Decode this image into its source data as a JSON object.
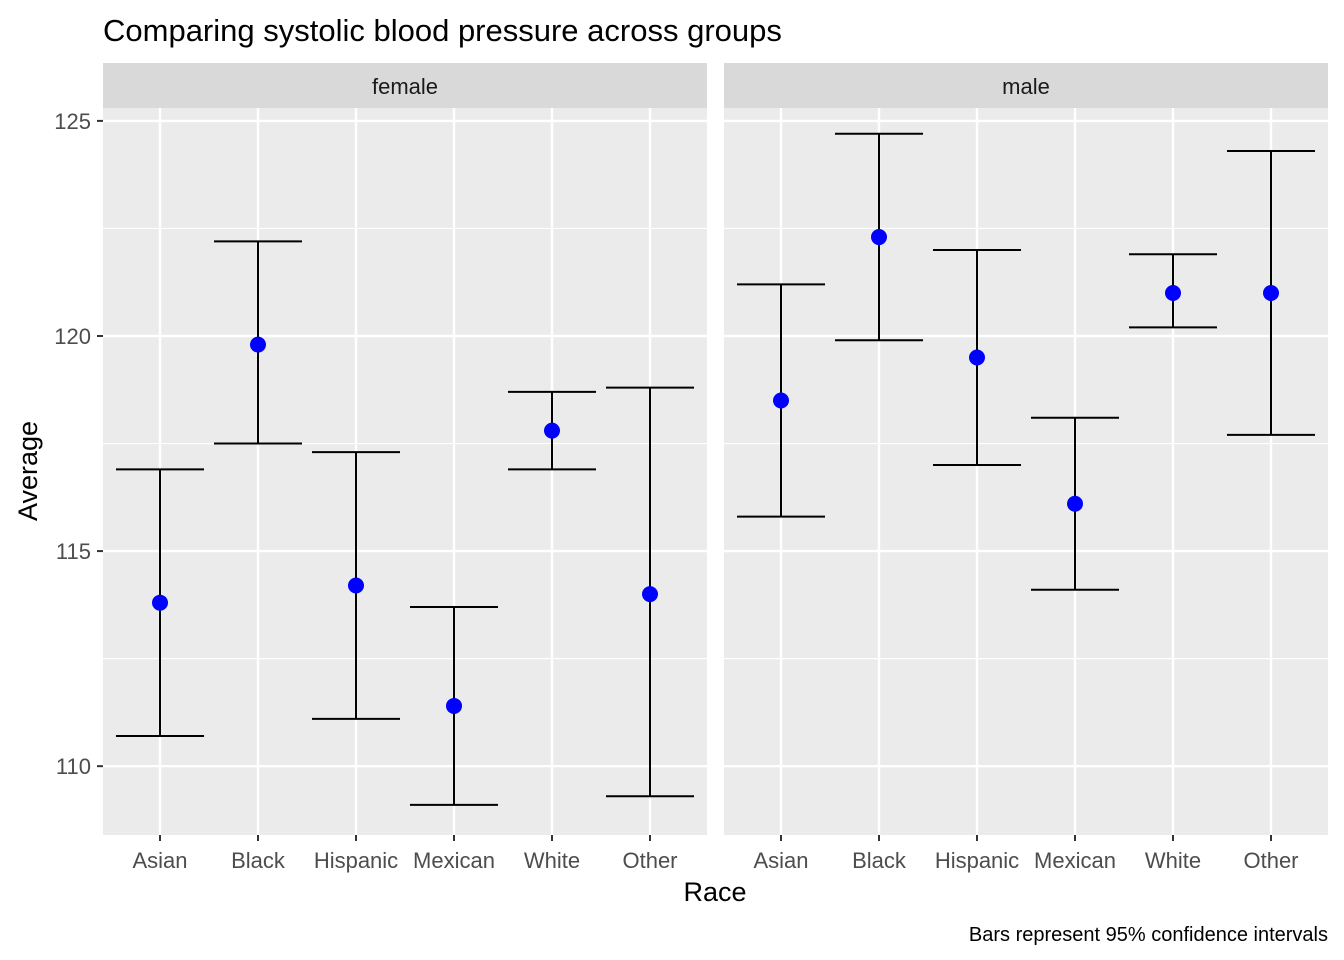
{
  "chart_data": {
    "type": "scatter",
    "title": "Comparing systolic blood pressure across groups",
    "xlabel": "Race",
    "ylabel": "Average",
    "caption": "Bars represent 95% confidence intervals",
    "categories": [
      "Asian",
      "Black",
      "Hispanic",
      "Mexican",
      "White",
      "Other"
    ],
    "ylim": [
      108.4,
      125.3
    ],
    "yticks": [
      110,
      115,
      120,
      125
    ],
    "grid": true,
    "point_color": "#0000ff",
    "panel_background": "#ebebeb",
    "strip_background": "#d9d9d9",
    "facets": [
      {
        "label": "female",
        "series": [
          {
            "category": "Asian",
            "mean": 113.8,
            "lower": 110.7,
            "upper": 116.9
          },
          {
            "category": "Black",
            "mean": 119.8,
            "lower": 117.5,
            "upper": 122.2
          },
          {
            "category": "Hispanic",
            "mean": 114.2,
            "lower": 111.1,
            "upper": 117.3
          },
          {
            "category": "Mexican",
            "mean": 111.4,
            "lower": 109.1,
            "upper": 113.7
          },
          {
            "category": "White",
            "mean": 117.8,
            "lower": 116.9,
            "upper": 118.7
          },
          {
            "category": "Other",
            "mean": 114.0,
            "lower": 109.3,
            "upper": 118.8
          }
        ]
      },
      {
        "label": "male",
        "series": [
          {
            "category": "Asian",
            "mean": 118.5,
            "lower": 115.8,
            "upper": 121.2
          },
          {
            "category": "Black",
            "mean": 122.3,
            "lower": 119.9,
            "upper": 124.7
          },
          {
            "category": "Hispanic",
            "mean": 119.5,
            "lower": 117.0,
            "upper": 122.0
          },
          {
            "category": "Mexican",
            "mean": 116.1,
            "lower": 114.1,
            "upper": 118.1
          },
          {
            "category": "White",
            "mean": 121.0,
            "lower": 120.2,
            "upper": 121.9
          },
          {
            "category": "Other",
            "mean": 121.0,
            "lower": 117.7,
            "upper": 124.3
          }
        ]
      }
    ]
  }
}
